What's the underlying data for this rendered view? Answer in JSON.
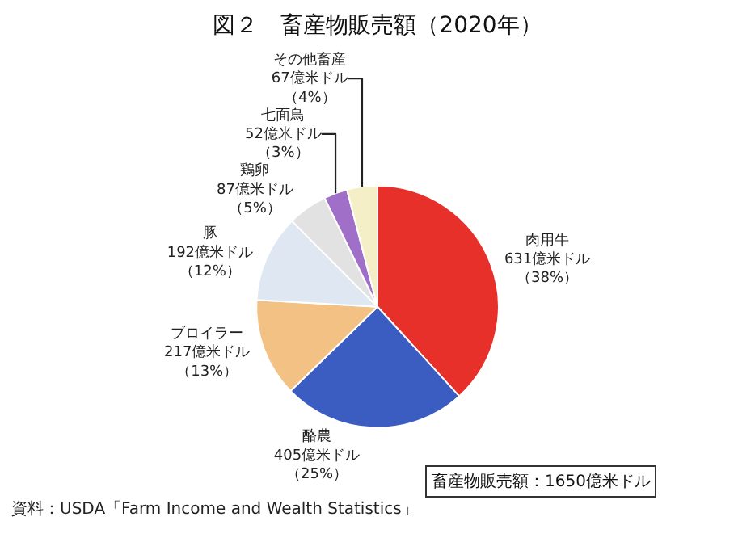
{
  "chart_data": {
    "type": "pie",
    "title": "図２　畜産物販売額（2020年）",
    "categories": [
      "肉用牛",
      "酪農",
      "ブロイラー",
      "豚",
      "鶏卵",
      "七面鳥",
      "その他畜産"
    ],
    "values": [
      631,
      405,
      217,
      192,
      87,
      52,
      67
    ],
    "value_labels": [
      "631億米ドル（38%）",
      "405億米ドル（25%）",
      "217億米ドル（13%）",
      "192億米ドル（12%）",
      "87億米ドル（5%）",
      "52億米ドル（3%）",
      "67億米ドル（4%）"
    ],
    "colors": [
      "#e8302a",
      "#3b5cc0",
      "#f3c184",
      "#dfe8f2",
      "#e2e2e2",
      "#a070c8",
      "#f4efc6"
    ],
    "annotations": [
      "畜産物販売額：1650億米ドル",
      "資料：USDA「Farm Income and Wealth Statistics」"
    ],
    "legend": false
  }
}
